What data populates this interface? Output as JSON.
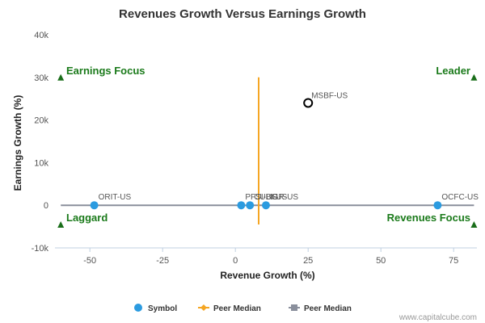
{
  "chart_data": {
    "type": "scatter",
    "title": "Revenues Growth Versus Earnings Growth",
    "xlabel": "Revenue Growth (%)",
    "ylabel": "Earnings Growth (%)",
    "xlim": [
      -62,
      83
    ],
    "ylim": [
      -10000,
      40000
    ],
    "x_ticks": [
      -50,
      -25,
      0,
      25,
      50,
      75
    ],
    "y_ticks": [
      -10000,
      0,
      10000,
      20000,
      30000,
      40000
    ],
    "x_tick_labels": [
      "-50",
      "-25",
      "0",
      "25",
      "50",
      "75"
    ],
    "y_tick_labels": [
      "-10k",
      "0",
      "10k",
      "20k",
      "30k",
      "40k"
    ],
    "grid": false,
    "series": [
      {
        "name": "Symbol",
        "color": "#2b9be0",
        "points": [
          {
            "label": "ORIT-US",
            "x": -48.5,
            "y": 0
          },
          {
            "label": "PFSI-US",
            "x": 2.0,
            "y": 0
          },
          {
            "label": "CUBI-US",
            "x": 5.0,
            "y": 0
          },
          {
            "label": "IGR-US",
            "x": 10.5,
            "y": 0
          },
          {
            "label": "OCFC-US",
            "x": 69.5,
            "y": 0
          }
        ]
      }
    ],
    "highlight": {
      "label": "MSBF-US",
      "x": 25,
      "y": 24000
    },
    "peer_median_revenue": {
      "name": "Peer Median",
      "color": "#f5a623",
      "x": 8,
      "y_range": [
        -4500,
        30000
      ]
    },
    "peer_median_earnings": {
      "name": "Peer Median",
      "color": "#8a8f9c",
      "y": 0
    },
    "quadrants": {
      "top_left": "Earnings Focus",
      "top_right": "Leader",
      "bottom_left": "Laggard",
      "bottom_right": "Revenues Focus"
    },
    "quadrant_color": "#1a6e1a",
    "legend": [
      {
        "name": "Symbol",
        "kind": "dot",
        "color": "#2b9be0"
      },
      {
        "name": "Peer Median",
        "kind": "diamond",
        "color": "#f5a623"
      },
      {
        "name": "Peer Median",
        "kind": "square",
        "color": "#8a8f9c"
      }
    ],
    "source": "www.capitalcube.com"
  }
}
